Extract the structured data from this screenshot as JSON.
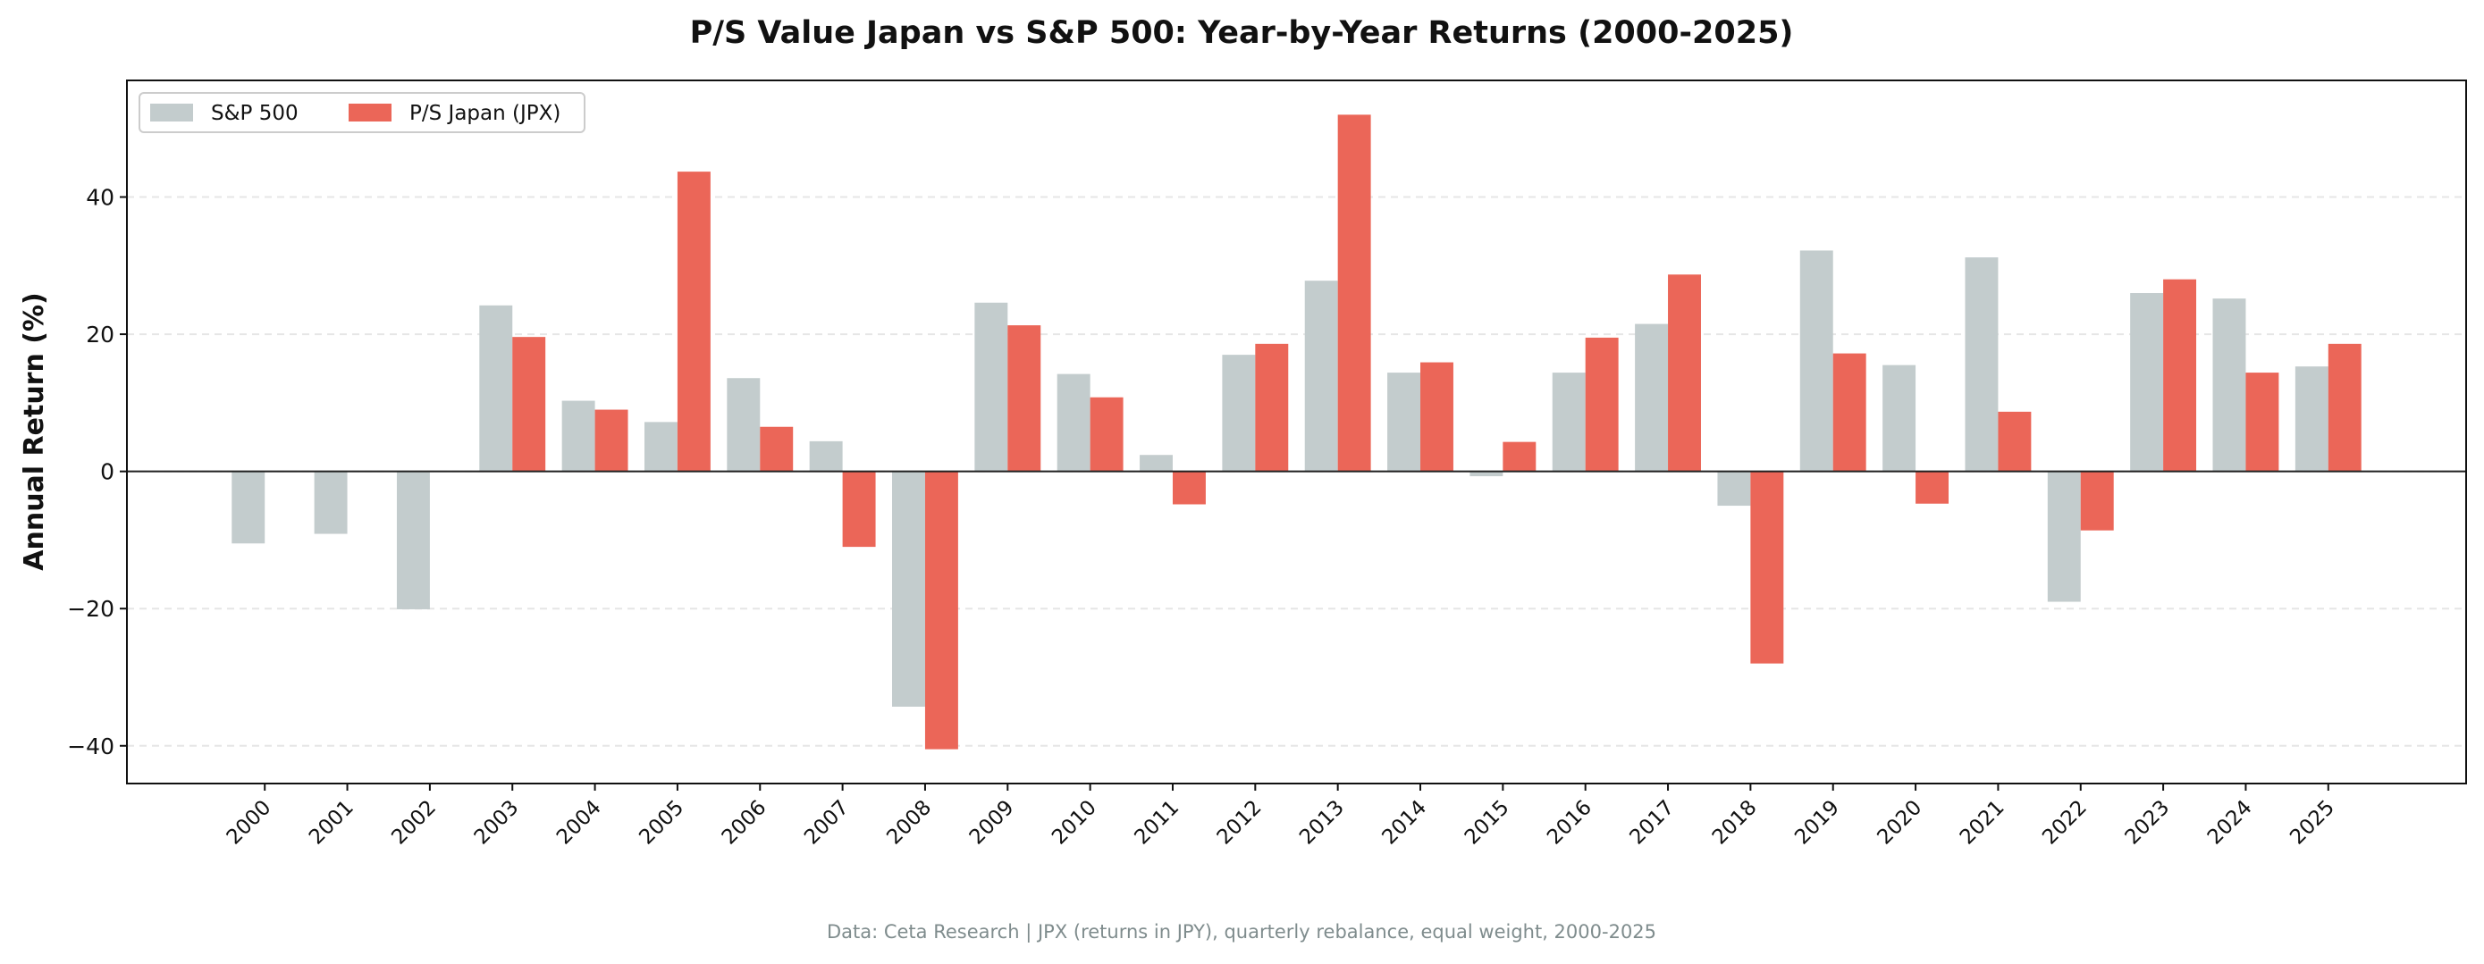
{
  "chart_data": {
    "type": "bar",
    "title": "P/S Value Japan vs S&P 500: Year-by-Year Returns (2000-2025)",
    "xlabel": "",
    "ylabel": "Annual Return (%)",
    "ylim": [
      -45.5,
      57
    ],
    "yticks": [
      -40,
      -20,
      0,
      20,
      40
    ],
    "ytick_labels": [
      "−40",
      "−20",
      "0",
      "20",
      "40"
    ],
    "grid": "horizontal dashed",
    "legend_placement": "top-left",
    "categories": [
      "2000",
      "2001",
      "2002",
      "2003",
      "2004",
      "2005",
      "2006",
      "2007",
      "2008",
      "2009",
      "2010",
      "2011",
      "2012",
      "2013",
      "2014",
      "2015",
      "2016",
      "2017",
      "2018",
      "2019",
      "2020",
      "2021",
      "2022",
      "2023",
      "2024",
      "2025"
    ],
    "series": [
      {
        "name": "S&P 500",
        "color": "#c3cccd",
        "values": [
          -10.5,
          -9.1,
          -20.1,
          24.2,
          10.3,
          7.2,
          13.6,
          4.4,
          -34.3,
          24.6,
          14.2,
          2.4,
          17.0,
          27.8,
          14.4,
          -0.7,
          14.4,
          21.5,
          -5.0,
          32.2,
          15.5,
          31.2,
          -19.0,
          26.0,
          25.2,
          15.3
        ]
      },
      {
        "name": "P/S Japan (JPX)",
        "color": "#eb6658",
        "values": [
          0,
          0,
          0,
          19.6,
          9.0,
          43.7,
          6.5,
          -11.0,
          -40.5,
          21.3,
          10.8,
          -4.8,
          18.6,
          52.0,
          15.9,
          4.3,
          19.5,
          28.7,
          -28.0,
          17.2,
          -4.7,
          8.7,
          -8.6,
          28.0,
          14.4,
          18.6
        ]
      }
    ],
    "footnote": "Data: Ceta Research | JPX (returns in JPY), quarterly rebalance, equal weight, 2000-2025"
  }
}
